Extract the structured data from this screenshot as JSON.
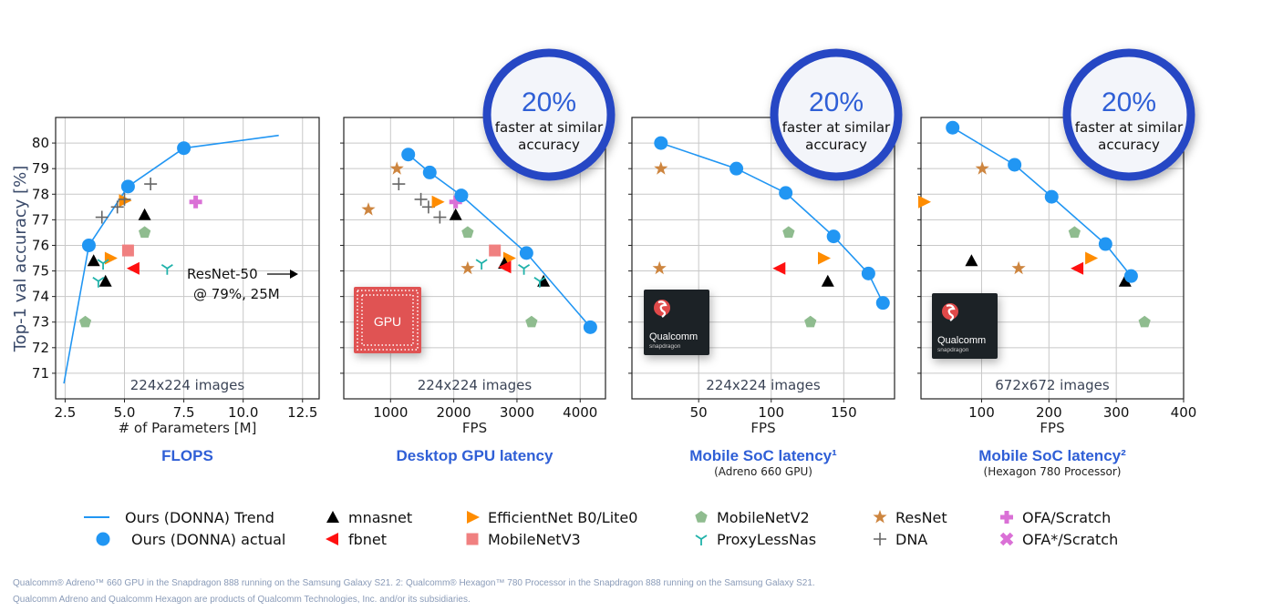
{
  "colors": {
    "donna": "#2196f3",
    "title_blue": "#2f5fd6",
    "badge_ring": "#2846c4",
    "grid": "#c8c8c8"
  },
  "y_axis_label": "Top-1 val accuracy [%]",
  "badge": {
    "percent": "20%",
    "line1": "faster at similar",
    "line2": "accuracy"
  },
  "chips": {
    "gpu": "GPU",
    "qualcomm": "Qualcomm",
    "snapdragon": "snapdragon"
  },
  "legend": [
    {
      "label": "Ours (DONNA) Trend",
      "marker": "line",
      "color": "#2196f3"
    },
    {
      "label": "Ours (DONNA) actual",
      "marker": "circle",
      "color": "#2196f3"
    },
    {
      "label": "mnasnet",
      "marker": "tri_up",
      "color": "#000000"
    },
    {
      "label": "fbnet",
      "marker": "tri_left",
      "color": "#ff1010"
    },
    {
      "label": "EfficientNet B0/Lite0",
      "marker": "tri_right",
      "color": "#ff8c00"
    },
    {
      "label": "MobileNetV3",
      "marker": "square",
      "color": "#f08080"
    },
    {
      "label": "MobileNetV2",
      "marker": "pentagon",
      "color": "#8fbc8f"
    },
    {
      "label": "ProxyLessNas",
      "marker": "tri_y",
      "color": "#20b2aa"
    },
    {
      "label": "ResNet",
      "marker": "star",
      "color": "#cd853f"
    },
    {
      "label": "DNA",
      "marker": "plus",
      "color": "#666666"
    },
    {
      "label": "OFA/Scratch",
      "marker": "plus_filled",
      "color": "#da70d6"
    },
    {
      "label": "OFA*/Scratch",
      "marker": "x_filled",
      "color": "#da70d6"
    }
  ],
  "footnote": {
    "line1": "Qualcomm® Adreno™ 660 GPU in the Snapdragon 888 running on the Samsung Galaxy S21. 2: Qualcomm® Hexagon™ 780 Processor in the Snapdragon 888 running on the Samsung Galaxy S21.",
    "line2": "Qualcomm Adreno and Qualcomm Hexagon are products of Qualcomm Technologies, Inc. and/or its subsidiaries."
  },
  "chart_data": [
    {
      "type": "scatter",
      "title": "FLOPS",
      "subtitle": "",
      "xlabel": "# of Parameters [M]",
      "ylabel": "Top-1 val accuracy [%]",
      "xlim": [
        2.1,
        13.2
      ],
      "ylim": [
        70,
        81
      ],
      "xticks": [
        2.5,
        5.0,
        7.5,
        10.0,
        12.5
      ],
      "xtick_labels": [
        "2.5",
        "5.0",
        "7.5",
        "10.0",
        "12.5"
      ],
      "yticks": [
        71,
        72,
        73,
        74,
        75,
        76,
        77,
        78,
        79,
        80
      ],
      "ytick_labels": [
        "71",
        "72",
        "73",
        "74",
        "75",
        "76",
        "77",
        "78",
        "79",
        "80"
      ],
      "grid": true,
      "note": "224x224 images",
      "annotation": {
        "line1": "ResNet-50",
        "line2": "@ 79%, 25M"
      },
      "trend": [
        [
          2.45,
          70.6
        ],
        [
          3.5,
          76.0
        ],
        [
          5.15,
          78.3
        ],
        [
          7.5,
          79.8
        ],
        [
          11.5,
          80.3
        ]
      ],
      "series": [
        {
          "name": "Ours (DONNA) actual",
          "points": [
            [
              3.5,
              76.0
            ],
            [
              5.15,
              78.3
            ],
            [
              7.5,
              79.8
            ]
          ]
        },
        {
          "name": "mnasnet",
          "points": [
            [
              3.7,
              75.4
            ],
            [
              4.2,
              74.6
            ],
            [
              5.85,
              77.2
            ]
          ]
        },
        {
          "name": "EfficientNet B0/Lite0",
          "points": [
            [
              4.4,
              75.5
            ],
            [
              5.0,
              77.75
            ]
          ]
        },
        {
          "name": "MobileNetV3",
          "points": [
            [
              5.15,
              75.8
            ]
          ]
        },
        {
          "name": "fbnet",
          "points": [
            [
              5.4,
              75.1
            ]
          ]
        },
        {
          "name": "MobileNetV2",
          "points": [
            [
              3.35,
              73.0
            ],
            [
              5.85,
              76.5
            ]
          ]
        },
        {
          "name": "ProxyLessNas",
          "points": [
            [
              4.1,
              75.3
            ],
            [
              3.9,
              74.6
            ],
            [
              6.8,
              75.1
            ]
          ]
        },
        {
          "name": "DNA",
          "points": [
            [
              4.05,
              77.1
            ],
            [
              4.7,
              77.5
            ],
            [
              5.0,
              77.8
            ],
            [
              6.1,
              78.4
            ]
          ]
        },
        {
          "name": "OFA/Scratch",
          "points": [
            [
              8.0,
              77.7
            ]
          ]
        }
      ]
    },
    {
      "type": "scatter",
      "title": "Desktop GPU latency",
      "subtitle": "",
      "xlabel": "FPS",
      "ylabel": "",
      "xlim": [
        260,
        4400
      ],
      "ylim": [
        70,
        81
      ],
      "xticks": [
        1000,
        2000,
        3000,
        4000
      ],
      "xtick_labels": [
        "1000",
        "2000",
        "3000",
        "4000"
      ],
      "yticks": [
        71,
        72,
        73,
        74,
        75,
        76,
        77,
        78,
        79,
        80
      ],
      "ytick_labels": [],
      "grid": true,
      "note": "224x224 images",
      "chip": "gpu",
      "trend": [
        [
          1280,
          79.55
        ],
        [
          1620,
          78.85
        ],
        [
          2120,
          77.95
        ],
        [
          3150,
          75.7
        ],
        [
          4160,
          72.8
        ]
      ],
      "series": [
        {
          "name": "Ours (DONNA) actual",
          "points": [
            [
              1280,
              79.55
            ],
            [
              1620,
              78.85
            ],
            [
              2120,
              77.95
            ],
            [
              3150,
              75.7
            ],
            [
              4160,
              72.8
            ]
          ]
        },
        {
          "name": "ResNet",
          "points": [
            [
              1100,
              79.0
            ],
            [
              650,
              77.4
            ],
            [
              2220,
              75.1
            ]
          ]
        },
        {
          "name": "DNA",
          "points": [
            [
              1130,
              78.4
            ],
            [
              1480,
              77.8
            ],
            [
              1600,
              77.5
            ],
            [
              1780,
              77.1
            ]
          ]
        },
        {
          "name": "EfficientNet B0/Lite0",
          "points": [
            [
              1740,
              77.7
            ],
            [
              2870,
              75.5
            ]
          ]
        },
        {
          "name": "OFA/Scratch",
          "points": [
            [
              2030,
              77.7
            ]
          ]
        },
        {
          "name": "mnasnet",
          "points": [
            [
              2030,
              77.2
            ],
            [
              2800,
              75.3
            ],
            [
              3420,
              74.6
            ]
          ]
        },
        {
          "name": "MobileNetV2",
          "points": [
            [
              2220,
              76.5
            ],
            [
              3230,
              73.0
            ]
          ]
        },
        {
          "name": "MobileNetV3",
          "points": [
            [
              2650,
              75.8
            ]
          ]
        },
        {
          "name": "fbnet",
          "points": [
            [
              2820,
              75.15
            ]
          ]
        },
        {
          "name": "ProxyLessNas",
          "points": [
            [
              2440,
              75.3
            ],
            [
              3110,
              75.1
            ],
            [
              3360,
              74.6
            ]
          ]
        }
      ]
    },
    {
      "type": "scatter",
      "title": "Mobile SoC latency¹",
      "subtitle": "(Adreno 660 GPU)",
      "xlabel": "FPS",
      "ylabel": "",
      "xlim": [
        4,
        185
      ],
      "ylim": [
        70,
        81
      ],
      "xticks": [
        50,
        100,
        150
      ],
      "xtick_labels": [
        "50",
        "100",
        "150"
      ],
      "yticks": [
        71,
        72,
        73,
        74,
        75,
        76,
        77,
        78,
        79,
        80
      ],
      "ytick_labels": [],
      "grid": true,
      "note": "224x224 images",
      "chip": "qualcomm",
      "trend": [
        [
          24,
          80.0
        ],
        [
          76,
          79.0
        ],
        [
          110,
          78.05
        ],
        [
          143,
          76.35
        ],
        [
          167,
          74.9
        ],
        [
          177,
          73.75
        ]
      ],
      "series": [
        {
          "name": "Ours (DONNA) actual",
          "points": [
            [
              24,
              80.0
            ],
            [
              76,
              79.0
            ],
            [
              110,
              78.05
            ],
            [
              143,
              76.35
            ],
            [
              167,
              74.9
            ],
            [
              177,
              73.75
            ]
          ]
        },
        {
          "name": "ResNet",
          "points": [
            [
              24,
              79.0
            ],
            [
              23,
              75.1
            ]
          ]
        },
        {
          "name": "MobileNetV2",
          "points": [
            [
              112,
              76.5
            ],
            [
              127,
              73.0
            ]
          ]
        },
        {
          "name": "EfficientNet B0/Lite0",
          "points": [
            [
              136,
              75.5
            ]
          ]
        },
        {
          "name": "fbnet",
          "points": [
            [
              106,
              75.1
            ]
          ]
        },
        {
          "name": "mnasnet",
          "points": [
            [
              139,
              74.6
            ]
          ]
        }
      ]
    },
    {
      "type": "scatter",
      "title": "Mobile SoC latency²",
      "subtitle": "(Hexagon 780 Processor)",
      "xlabel": "FPS",
      "ylabel": "",
      "xlim": [
        10,
        400
      ],
      "ylim": [
        70,
        81
      ],
      "xticks": [
        100,
        200,
        300,
        400
      ],
      "xtick_labels": [
        "100",
        "200",
        "300",
        "400"
      ],
      "yticks": [
        71,
        72,
        73,
        74,
        75,
        76,
        77,
        78,
        79,
        80
      ],
      "ytick_labels": [],
      "grid": true,
      "note": "672x672 images",
      "chip": "qualcomm",
      "trend": [
        [
          57,
          80.6
        ],
        [
          149,
          79.15
        ],
        [
          204,
          77.9
        ],
        [
          284,
          76.05
        ],
        [
          322,
          74.8
        ]
      ],
      "series": [
        {
          "name": "Ours (DONNA) actual",
          "points": [
            [
              57,
              80.6
            ],
            [
              149,
              79.15
            ],
            [
              204,
              77.9
            ],
            [
              284,
              76.05
            ],
            [
              322,
              74.8
            ]
          ]
        },
        {
          "name": "EfficientNet B0/Lite0",
          "points": [
            [
              14,
              77.7
            ],
            [
              262,
              75.5
            ]
          ]
        },
        {
          "name": "ResNet",
          "points": [
            [
              101,
              79.0
            ],
            [
              155,
              75.1
            ]
          ]
        },
        {
          "name": "mnasnet",
          "points": [
            [
              85,
              75.4
            ],
            [
              313,
              74.6
            ]
          ]
        },
        {
          "name": "MobileNetV2",
          "points": [
            [
              238,
              76.5
            ],
            [
              342,
              73.0
            ]
          ]
        },
        {
          "name": "fbnet",
          "points": [
            [
              243,
              75.1
            ]
          ]
        }
      ]
    }
  ]
}
